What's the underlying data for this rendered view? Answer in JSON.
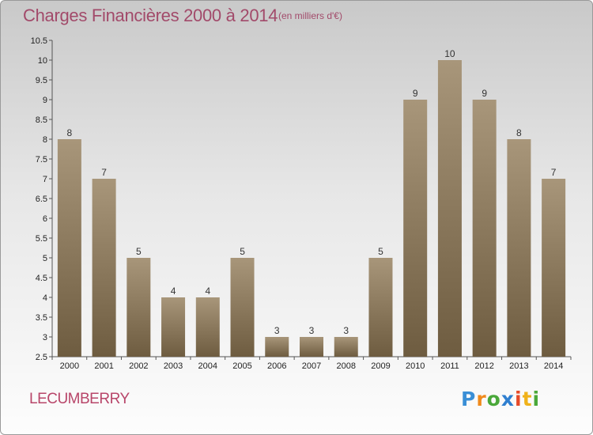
{
  "title": "Charges Financières 2000 à 2014",
  "subtitle": "(en milliers d'€)",
  "commune": "LECUMBERRY",
  "logo": {
    "text": "Proxiti"
  },
  "colors": {
    "bar_top": "#a8967a",
    "bar_bottom": "#6e5c40",
    "title": "#a24a6a",
    "commune": "#b8466a"
  },
  "chart_data": {
    "type": "bar",
    "title": "Charges Financières 2000 à 2014",
    "subtitle": "(en milliers d'€)",
    "categories": [
      "2000",
      "2001",
      "2002",
      "2003",
      "2004",
      "2005",
      "2006",
      "2007",
      "2008",
      "2009",
      "2010",
      "2011",
      "2012",
      "2013",
      "2014"
    ],
    "values": [
      8,
      7,
      5,
      4,
      4,
      5,
      3,
      3,
      3,
      5,
      9,
      10,
      9,
      8,
      7
    ],
    "ylim": [
      2.5,
      10.5
    ],
    "yticks": [
      "2.5",
      "3",
      "3.5",
      "4",
      "4.5",
      "5",
      "5.5",
      "6",
      "6.5",
      "7",
      "7.5",
      "8",
      "8.5",
      "9",
      "9.5",
      "10",
      "10.5"
    ],
    "grid": false,
    "xlabel": "",
    "ylabel": ""
  }
}
